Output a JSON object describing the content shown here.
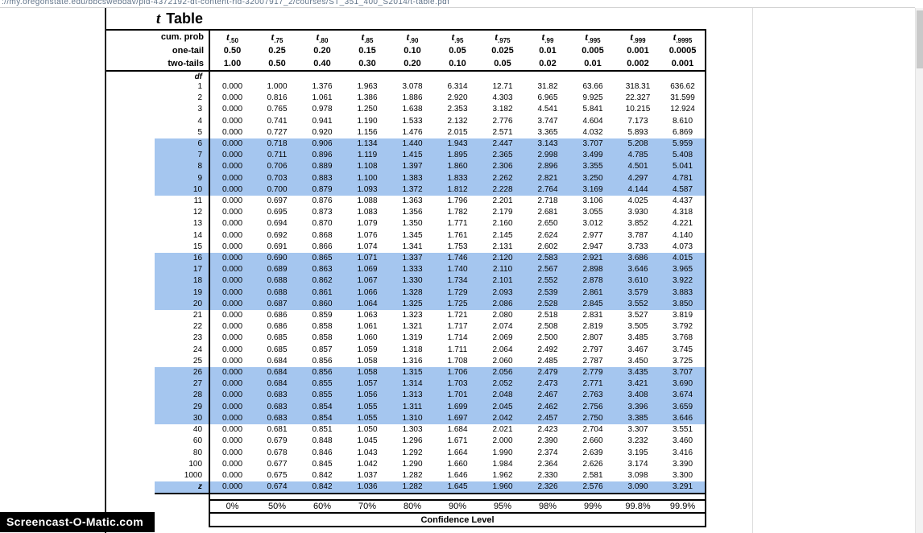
{
  "colors": {
    "highlight": "#a5c6ef",
    "url_text": "#5f7288",
    "watermark_bg": "#000000"
  },
  "browser": {
    "url_text": "://my.oregonstate.edu/bbcswebdav/pid-4372192-dt-content-rid-32007917_2/courses/ST_351_400_S2014/t-table.pdf"
  },
  "watermark": {
    "label": "Screencast-O-Matic.com"
  },
  "table": {
    "title": {
      "italic": "t",
      "rest": "Table"
    },
    "header": {
      "cum_prob_label": "cum. prob",
      "one_tail_label": "one-tail",
      "two_tails_label": "two-tails",
      "df_label": "df",
      "t_base": "t",
      "t_subs": [
        ".50",
        ".75",
        ".80",
        ".85",
        ".90",
        ".95",
        ".975",
        ".99",
        ".995",
        ".999",
        ".9995"
      ],
      "one_tail": [
        "0.50",
        "0.25",
        "0.20",
        "0.15",
        "0.10",
        "0.05",
        "0.025",
        "0.01",
        "0.005",
        "0.001",
        "0.0005"
      ],
      "two_tails": [
        "1.00",
        "0.50",
        "0.40",
        "0.30",
        "0.20",
        "0.10",
        "0.05",
        "0.02",
        "0.01",
        "0.002",
        "0.001"
      ]
    },
    "rows": [
      {
        "df": "1",
        "highlight": false,
        "values": [
          "0.000",
          "1.000",
          "1.376",
          "1.963",
          "3.078",
          "6.314",
          "12.71",
          "31.82",
          "63.66",
          "318.31",
          "636.62"
        ]
      },
      {
        "df": "2",
        "highlight": false,
        "values": [
          "0.000",
          "0.816",
          "1.061",
          "1.386",
          "1.886",
          "2.920",
          "4.303",
          "6.965",
          "9.925",
          "22.327",
          "31.599"
        ]
      },
      {
        "df": "3",
        "highlight": false,
        "values": [
          "0.000",
          "0.765",
          "0.978",
          "1.250",
          "1.638",
          "2.353",
          "3.182",
          "4.541",
          "5.841",
          "10.215",
          "12.924"
        ]
      },
      {
        "df": "4",
        "highlight": false,
        "values": [
          "0.000",
          "0.741",
          "0.941",
          "1.190",
          "1.533",
          "2.132",
          "2.776",
          "3.747",
          "4.604",
          "7.173",
          "8.610"
        ]
      },
      {
        "df": "5",
        "highlight": false,
        "values": [
          "0.000",
          "0.727",
          "0.920",
          "1.156",
          "1.476",
          "2.015",
          "2.571",
          "3.365",
          "4.032",
          "5.893",
          "6.869"
        ]
      },
      {
        "df": "6",
        "highlight": true,
        "values": [
          "0.000",
          "0.718",
          "0.906",
          "1.134",
          "1.440",
          "1.943",
          "2.447",
          "3.143",
          "3.707",
          "5.208",
          "5.959"
        ]
      },
      {
        "df": "7",
        "highlight": true,
        "values": [
          "0.000",
          "0.711",
          "0.896",
          "1.119",
          "1.415",
          "1.895",
          "2.365",
          "2.998",
          "3.499",
          "4.785",
          "5.408"
        ]
      },
      {
        "df": "8",
        "highlight": true,
        "values": [
          "0.000",
          "0.706",
          "0.889",
          "1.108",
          "1.397",
          "1.860",
          "2.306",
          "2.896",
          "3.355",
          "4.501",
          "5.041"
        ]
      },
      {
        "df": "9",
        "highlight": true,
        "values": [
          "0.000",
          "0.703",
          "0.883",
          "1.100",
          "1.383",
          "1.833",
          "2.262",
          "2.821",
          "3.250",
          "4.297",
          "4.781"
        ]
      },
      {
        "df": "10",
        "highlight": true,
        "values": [
          "0.000",
          "0.700",
          "0.879",
          "1.093",
          "1.372",
          "1.812",
          "2.228",
          "2.764",
          "3.169",
          "4.144",
          "4.587"
        ]
      },
      {
        "df": "11",
        "highlight": false,
        "values": [
          "0.000",
          "0.697",
          "0.876",
          "1.088",
          "1.363",
          "1.796",
          "2.201",
          "2.718",
          "3.106",
          "4.025",
          "4.437"
        ]
      },
      {
        "df": "12",
        "highlight": false,
        "values": [
          "0.000",
          "0.695",
          "0.873",
          "1.083",
          "1.356",
          "1.782",
          "2.179",
          "2.681",
          "3.055",
          "3.930",
          "4.318"
        ]
      },
      {
        "df": "13",
        "highlight": false,
        "values": [
          "0.000",
          "0.694",
          "0.870",
          "1.079",
          "1.350",
          "1.771",
          "2.160",
          "2.650",
          "3.012",
          "3.852",
          "4.221"
        ]
      },
      {
        "df": "14",
        "highlight": false,
        "values": [
          "0.000",
          "0.692",
          "0.868",
          "1.076",
          "1.345",
          "1.761",
          "2.145",
          "2.624",
          "2.977",
          "3.787",
          "4.140"
        ]
      },
      {
        "df": "15",
        "highlight": false,
        "values": [
          "0.000",
          "0.691",
          "0.866",
          "1.074",
          "1.341",
          "1.753",
          "2.131",
          "2.602",
          "2.947",
          "3.733",
          "4.073"
        ]
      },
      {
        "df": "16",
        "highlight": true,
        "values": [
          "0.000",
          "0.690",
          "0.865",
          "1.071",
          "1.337",
          "1.746",
          "2.120",
          "2.583",
          "2.921",
          "3.686",
          "4.015"
        ]
      },
      {
        "df": "17",
        "highlight": true,
        "values": [
          "0.000",
          "0.689",
          "0.863",
          "1.069",
          "1.333",
          "1.740",
          "2.110",
          "2.567",
          "2.898",
          "3.646",
          "3.965"
        ]
      },
      {
        "df": "18",
        "highlight": true,
        "values": [
          "0.000",
          "0.688",
          "0.862",
          "1.067",
          "1.330",
          "1.734",
          "2.101",
          "2.552",
          "2.878",
          "3.610",
          "3.922"
        ]
      },
      {
        "df": "19",
        "highlight": true,
        "values": [
          "0.000",
          "0.688",
          "0.861",
          "1.066",
          "1.328",
          "1.729",
          "2.093",
          "2.539",
          "2.861",
          "3.579",
          "3.883"
        ]
      },
      {
        "df": "20",
        "highlight": true,
        "values": [
          "0.000",
          "0.687",
          "0.860",
          "1.064",
          "1.325",
          "1.725",
          "2.086",
          "2.528",
          "2.845",
          "3.552",
          "3.850"
        ]
      },
      {
        "df": "21",
        "highlight": false,
        "values": [
          "0.000",
          "0.686",
          "0.859",
          "1.063",
          "1.323",
          "1.721",
          "2.080",
          "2.518",
          "2.831",
          "3.527",
          "3.819"
        ]
      },
      {
        "df": "22",
        "highlight": false,
        "values": [
          "0.000",
          "0.686",
          "0.858",
          "1.061",
          "1.321",
          "1.717",
          "2.074",
          "2.508",
          "2.819",
          "3.505",
          "3.792"
        ]
      },
      {
        "df": "23",
        "highlight": false,
        "values": [
          "0.000",
          "0.685",
          "0.858",
          "1.060",
          "1.319",
          "1.714",
          "2.069",
          "2.500",
          "2.807",
          "3.485",
          "3.768"
        ]
      },
      {
        "df": "24",
        "highlight": false,
        "values": [
          "0.000",
          "0.685",
          "0.857",
          "1.059",
          "1.318",
          "1.711",
          "2.064",
          "2.492",
          "2.797",
          "3.467",
          "3.745"
        ]
      },
      {
        "df": "25",
        "highlight": false,
        "values": [
          "0.000",
          "0.684",
          "0.856",
          "1.058",
          "1.316",
          "1.708",
          "2.060",
          "2.485",
          "2.787",
          "3.450",
          "3.725"
        ]
      },
      {
        "df": "26",
        "highlight": true,
        "values": [
          "0.000",
          "0.684",
          "0.856",
          "1.058",
          "1.315",
          "1.706",
          "2.056",
          "2.479",
          "2.779",
          "3.435",
          "3.707"
        ]
      },
      {
        "df": "27",
        "highlight": true,
        "values": [
          "0.000",
          "0.684",
          "0.855",
          "1.057",
          "1.314",
          "1.703",
          "2.052",
          "2.473",
          "2.771",
          "3.421",
          "3.690"
        ]
      },
      {
        "df": "28",
        "highlight": true,
        "values": [
          "0.000",
          "0.683",
          "0.855",
          "1.056",
          "1.313",
          "1.701",
          "2.048",
          "2.467",
          "2.763",
          "3.408",
          "3.674"
        ]
      },
      {
        "df": "29",
        "highlight": true,
        "values": [
          "0.000",
          "0.683",
          "0.854",
          "1.055",
          "1.311",
          "1.699",
          "2.045",
          "2.462",
          "2.756",
          "3.396",
          "3.659"
        ]
      },
      {
        "df": "30",
        "highlight": true,
        "values": [
          "0.000",
          "0.683",
          "0.854",
          "1.055",
          "1.310",
          "1.697",
          "2.042",
          "2.457",
          "2.750",
          "3.385",
          "3.646"
        ]
      },
      {
        "df": "40",
        "highlight": false,
        "values": [
          "0.000",
          "0.681",
          "0.851",
          "1.050",
          "1.303",
          "1.684",
          "2.021",
          "2.423",
          "2.704",
          "3.307",
          "3.551"
        ]
      },
      {
        "df": "60",
        "highlight": false,
        "values": [
          "0.000",
          "0.679",
          "0.848",
          "1.045",
          "1.296",
          "1.671",
          "2.000",
          "2.390",
          "2.660",
          "3.232",
          "3.460"
        ]
      },
      {
        "df": "80",
        "highlight": false,
        "values": [
          "0.000",
          "0.678",
          "0.846",
          "1.043",
          "1.292",
          "1.664",
          "1.990",
          "2.374",
          "2.639",
          "3.195",
          "3.416"
        ]
      },
      {
        "df": "100",
        "highlight": false,
        "values": [
          "0.000",
          "0.677",
          "0.845",
          "1.042",
          "1.290",
          "1.660",
          "1.984",
          "2.364",
          "2.626",
          "3.174",
          "3.390"
        ]
      },
      {
        "df": "1000",
        "highlight": false,
        "values": [
          "0.000",
          "0.675",
          "0.842",
          "1.037",
          "1.282",
          "1.646",
          "1.962",
          "2.330",
          "2.581",
          "3.098",
          "3.300"
        ]
      },
      {
        "df": "z",
        "highlight": true,
        "values": [
          "0.000",
          "0.674",
          "0.842",
          "1.036",
          "1.282",
          "1.645",
          "1.960",
          "2.326",
          "2.576",
          "3.090",
          "3.291"
        ]
      }
    ],
    "footer": {
      "percents": [
        "0%",
        "50%",
        "60%",
        "70%",
        "80%",
        "90%",
        "95%",
        "98%",
        "99%",
        "99.8%",
        "99.9%"
      ],
      "confidence_label": "Confidence Level"
    }
  }
}
